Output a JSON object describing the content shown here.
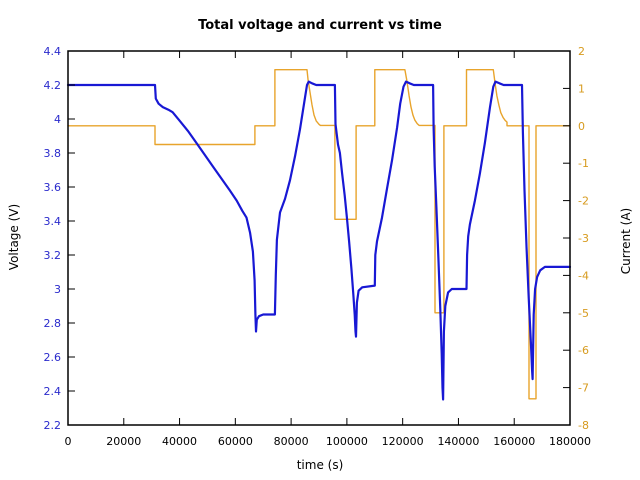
{
  "chart_data": {
    "type": "line",
    "title": "Total voltage and current vs time",
    "xlabel": "time (s)",
    "background": "#ffffff",
    "frame_color": "#000000",
    "x_range": [
      0,
      180000
    ],
    "x_ticks": [
      0,
      20000,
      40000,
      60000,
      80000,
      100000,
      120000,
      140000,
      160000,
      180000
    ],
    "x_tick_labels": [
      "0",
      "20000",
      "40000",
      "60000",
      "80000",
      "100000",
      "120000",
      "140000",
      "160000",
      "180000"
    ],
    "left_axis": {
      "label": "Voltage (V)",
      "range": [
        2.2,
        4.4
      ],
      "ticks": [
        4.4,
        4.2,
        4.0,
        3.8,
        3.6,
        3.4,
        3.2,
        3.0,
        2.8,
        2.6,
        2.4,
        2.2
      ],
      "tick_labels": [
        "4.4",
        "4.2",
        "4",
        "3.8",
        "3.6",
        "3.4",
        "3.2",
        "3",
        "2.8",
        "2.6",
        "2.4",
        "2.2"
      ],
      "text_color": "#2a2acc"
    },
    "right_axis": {
      "label": "Current (A)",
      "range": [
        -8,
        2
      ],
      "ticks": [
        2,
        1,
        0,
        -1,
        -2,
        -3,
        -4,
        -5,
        -6,
        -7,
        -8
      ],
      "tick_labels": [
        "2",
        "1",
        "0",
        "-1",
        "-2",
        "-3",
        "-4",
        "-5",
        "-6",
        "-7",
        "-8"
      ],
      "text_color": "#d79b1f"
    },
    "series": [
      {
        "name": "current",
        "axis": "right",
        "color": "#e8a42c",
        "width": 1.4,
        "points": [
          [
            0,
            0
          ],
          [
            31200,
            0
          ],
          [
            31200,
            -0.5
          ],
          [
            67000,
            -0.5
          ],
          [
            67000,
            0
          ],
          [
            74200,
            0
          ],
          [
            74200,
            1.5
          ],
          [
            85700,
            1.5
          ],
          [
            86100,
            1.22
          ],
          [
            86800,
            0.88
          ],
          [
            87500,
            0.56
          ],
          [
            88200,
            0.29
          ],
          [
            89000,
            0.13
          ],
          [
            90000,
            0.04
          ],
          [
            90500,
            0.01
          ],
          [
            95700,
            0.01
          ],
          [
            95700,
            -2.5
          ],
          [
            103300,
            -2.5
          ],
          [
            103300,
            0
          ],
          [
            110000,
            0
          ],
          [
            110000,
            1.5
          ],
          [
            120800,
            1.5
          ],
          [
            121500,
            1.2
          ],
          [
            122300,
            0.8
          ],
          [
            123000,
            0.5
          ],
          [
            123700,
            0.28
          ],
          [
            124400,
            0.15
          ],
          [
            125200,
            0.06
          ],
          [
            125900,
            0.01
          ],
          [
            131600,
            0.01
          ],
          [
            131600,
            -5
          ],
          [
            134800,
            -5
          ],
          [
            134800,
            0
          ],
          [
            142900,
            0
          ],
          [
            142900,
            1.5
          ],
          [
            152500,
            1.5
          ],
          [
            153100,
            1.15
          ],
          [
            153800,
            0.8
          ],
          [
            154500,
            0.55
          ],
          [
            155200,
            0.35
          ],
          [
            156000,
            0.22
          ],
          [
            156700,
            0.15
          ],
          [
            157400,
            0.1
          ],
          [
            157400,
            0
          ],
          [
            165300,
            0
          ],
          [
            165300,
            -7.3
          ],
          [
            167800,
            -7.3
          ],
          [
            167800,
            0
          ],
          [
            180000,
            0
          ]
        ]
      },
      {
        "name": "voltage",
        "axis": "left",
        "color": "#1818d4",
        "width": 2.2,
        "points": [
          [
            0,
            4.2
          ],
          [
            31200,
            4.2
          ],
          [
            31500,
            4.12
          ],
          [
            32500,
            4.09
          ],
          [
            34000,
            4.07
          ],
          [
            36000,
            4.055
          ],
          [
            37500,
            4.04
          ],
          [
            40000,
            3.99
          ],
          [
            43000,
            3.93
          ],
          [
            46000,
            3.86
          ],
          [
            49000,
            3.79
          ],
          [
            52000,
            3.72
          ],
          [
            55000,
            3.65
          ],
          [
            58000,
            3.58
          ],
          [
            60500,
            3.52
          ],
          [
            62500,
            3.46
          ],
          [
            64000,
            3.42
          ],
          [
            65300,
            3.33
          ],
          [
            66300,
            3.22
          ],
          [
            66900,
            3.05
          ],
          [
            67200,
            2.85
          ],
          [
            67400,
            2.75
          ],
          [
            67700,
            2.82
          ],
          [
            68500,
            2.84
          ],
          [
            70000,
            2.85
          ],
          [
            74200,
            2.85
          ],
          [
            74500,
            3.08
          ],
          [
            74900,
            3.29
          ],
          [
            76000,
            3.45
          ],
          [
            77800,
            3.53
          ],
          [
            79600,
            3.64
          ],
          [
            81400,
            3.78
          ],
          [
            83200,
            3.94
          ],
          [
            85000,
            4.13
          ],
          [
            85700,
            4.2
          ],
          [
            86300,
            4.22
          ],
          [
            87500,
            4.21
          ],
          [
            89000,
            4.2
          ],
          [
            95700,
            4.2
          ],
          [
            95900,
            3.97
          ],
          [
            96800,
            3.85
          ],
          [
            97500,
            3.8
          ],
          [
            98300,
            3.68
          ],
          [
            99200,
            3.55
          ],
          [
            100000,
            3.42
          ],
          [
            100800,
            3.28
          ],
          [
            101600,
            3.12
          ],
          [
            102300,
            2.97
          ],
          [
            102800,
            2.85
          ],
          [
            103100,
            2.75
          ],
          [
            103250,
            2.72
          ],
          [
            103600,
            2.92
          ],
          [
            104200,
            2.99
          ],
          [
            105500,
            3.01
          ],
          [
            110000,
            3.02
          ],
          [
            110200,
            3.2
          ],
          [
            110800,
            3.28
          ],
          [
            112600,
            3.42
          ],
          [
            114400,
            3.59
          ],
          [
            116200,
            3.76
          ],
          [
            118000,
            3.95
          ],
          [
            119100,
            4.09
          ],
          [
            120300,
            4.19
          ],
          [
            121200,
            4.22
          ],
          [
            122500,
            4.21
          ],
          [
            124000,
            4.2
          ],
          [
            130900,
            4.2
          ],
          [
            131100,
            3.95
          ],
          [
            131500,
            3.72
          ],
          [
            132100,
            3.48
          ],
          [
            132800,
            3.18
          ],
          [
            133500,
            2.88
          ],
          [
            134000,
            2.62
          ],
          [
            134300,
            2.42
          ],
          [
            134500,
            2.35
          ],
          [
            134800,
            2.75
          ],
          [
            135300,
            2.9
          ],
          [
            136300,
            2.98
          ],
          [
            137600,
            3.0
          ],
          [
            142900,
            3.0
          ],
          [
            143100,
            3.2
          ],
          [
            143500,
            3.31
          ],
          [
            144100,
            3.38
          ],
          [
            145900,
            3.52
          ],
          [
            147700,
            3.68
          ],
          [
            149500,
            3.86
          ],
          [
            151300,
            4.07
          ],
          [
            152500,
            4.19
          ],
          [
            153300,
            4.22
          ],
          [
            154700,
            4.21
          ],
          [
            156200,
            4.2
          ],
          [
            162800,
            4.2
          ],
          [
            163100,
            3.92
          ],
          [
            163700,
            3.58
          ],
          [
            164400,
            3.25
          ],
          [
            165200,
            2.95
          ],
          [
            166000,
            2.67
          ],
          [
            166400,
            2.52
          ],
          [
            166600,
            2.47
          ],
          [
            167000,
            2.85
          ],
          [
            167500,
            3.0
          ],
          [
            168200,
            3.07
          ],
          [
            169300,
            3.11
          ],
          [
            171000,
            3.13
          ],
          [
            180000,
            3.13
          ]
        ]
      }
    ]
  }
}
